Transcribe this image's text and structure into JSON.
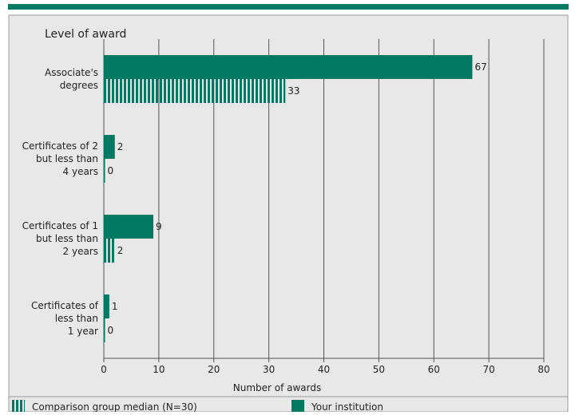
{
  "colors": {
    "accent": "#007a63",
    "panel": "#e8e8e8",
    "grid": "#555555",
    "border": "#999999"
  },
  "chart_data": {
    "type": "bar",
    "orientation": "horizontal",
    "title": "Level of award",
    "xlabel": "Number of awards",
    "ylabel": "",
    "xlim": [
      0,
      80
    ],
    "xticks": [
      0,
      10,
      20,
      30,
      40,
      50,
      60,
      70,
      80
    ],
    "categories": [
      [
        "Associate's",
        "degrees"
      ],
      [
        "Certificates of 2",
        "but less than",
        "4 years"
      ],
      [
        "Certificates of 1",
        "but less than",
        "2 years"
      ],
      [
        "Certificates of",
        "less than",
        "1 year"
      ]
    ],
    "series": [
      {
        "name": "Your institution",
        "values": [
          67,
          2,
          9,
          1
        ],
        "pattern": "solid"
      },
      {
        "name": "Comparison group median (N=30)",
        "values": [
          33,
          0,
          2,
          0
        ],
        "pattern": "striped"
      }
    ],
    "legend": [
      "Comparison group median (N=30)",
      "Your institution"
    ],
    "legend_position": "bottom",
    "grid": true
  }
}
